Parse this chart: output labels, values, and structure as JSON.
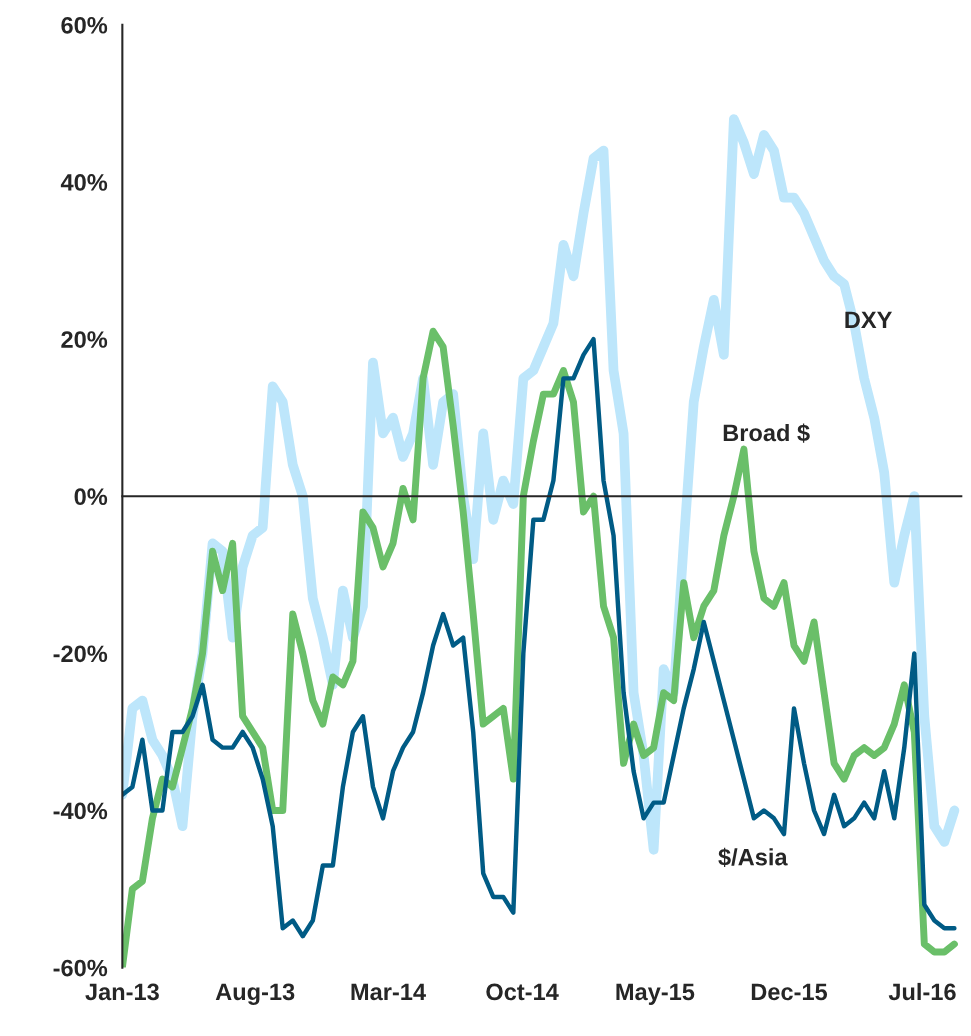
{
  "chart_data": {
    "type": "line",
    "x": [
      "2013-01-01",
      "2013-01-17",
      "2013-02-02",
      "2013-02-18",
      "2013-03-06",
      "2013-03-22",
      "2013-04-07",
      "2013-04-23",
      "2013-05-09",
      "2013-05-25",
      "2013-06-10",
      "2013-06-26",
      "2013-07-12",
      "2013-07-28",
      "2013-08-13",
      "2013-08-29",
      "2013-09-14",
      "2013-09-30",
      "2013-10-16",
      "2013-11-01",
      "2013-11-17",
      "2013-12-03",
      "2013-12-19",
      "2014-01-04",
      "2014-01-20",
      "2014-02-05",
      "2014-02-21",
      "2014-03-09",
      "2014-03-25",
      "2014-04-10",
      "2014-04-26",
      "2014-05-12",
      "2014-05-28",
      "2014-06-13",
      "2014-06-29",
      "2014-07-15",
      "2014-07-31",
      "2014-08-16",
      "2014-09-01",
      "2014-09-17",
      "2014-10-03",
      "2014-10-19",
      "2014-11-04",
      "2014-11-20",
      "2014-12-06",
      "2014-12-22",
      "2015-01-07",
      "2015-01-23",
      "2015-02-08",
      "2015-02-24",
      "2015-03-12",
      "2015-03-28",
      "2015-04-13",
      "2015-04-29",
      "2015-05-15",
      "2015-05-31",
      "2015-06-16",
      "2015-07-02",
      "2015-07-18",
      "2015-08-03",
      "2015-08-19",
      "2015-09-04",
      "2015-09-20",
      "2015-10-06",
      "2015-10-22",
      "2015-11-07",
      "2015-11-23",
      "2015-12-09",
      "2015-12-25",
      "2016-01-10",
      "2016-01-26",
      "2016-02-11",
      "2016-02-27",
      "2016-03-14",
      "2016-03-30",
      "2016-04-15",
      "2016-05-01",
      "2016-05-17",
      "2016-06-02",
      "2016-06-18",
      "2016-07-04",
      "2016-07-20",
      "2016-08-05",
      "2016-08-21"
    ],
    "series": [
      {
        "name": "DXY",
        "color": "#bde6fb",
        "values": [
          -38,
          -27,
          -26,
          -31,
          -33,
          -36,
          -42,
          -28,
          -20,
          -6,
          -7,
          -18,
          -9,
          -5,
          -4,
          14,
          12,
          4,
          0,
          -13,
          -18,
          -24,
          -12,
          -18,
          -14,
          17,
          8,
          10,
          5,
          8,
          15,
          4,
          12,
          13,
          0,
          -8,
          8,
          -3,
          2,
          -1,
          15,
          16,
          19,
          22,
          32,
          28,
          36,
          43,
          44,
          16,
          8,
          -25,
          -33,
          -45,
          -22,
          -25,
          -6,
          12,
          19,
          25,
          18,
          48,
          45,
          41,
          46,
          44,
          38,
          38,
          36,
          33,
          30,
          28,
          27,
          22,
          15,
          10,
          3,
          -11,
          -5,
          0,
          -28,
          -42,
          -44,
          -40
        ]
      },
      {
        "name": "Broad $",
        "color": "#6abf69",
        "values": [
          -60,
          -50,
          -49,
          -41,
          -36,
          -37,
          -32,
          -27,
          -20,
          -7,
          -12,
          -6,
          -28,
          -30,
          -32,
          -40,
          -40,
          -15,
          -20,
          -26,
          -29,
          -23,
          -24,
          -21,
          -2,
          -4,
          -9,
          -6,
          1,
          -3,
          15,
          21,
          19,
          9,
          -2,
          -15,
          -29,
          -28,
          -27,
          -36,
          0,
          7,
          13,
          13,
          16,
          12,
          -2,
          0,
          -14,
          -18,
          -34,
          -29,
          -33,
          -32,
          -25,
          -26,
          -11,
          -18,
          -14,
          -12,
          -5,
          0,
          6,
          -7,
          -13,
          -14,
          -11,
          -19,
          -21,
          -16,
          -25,
          -34,
          -36,
          -33,
          -32,
          -33,
          -32,
          -29,
          -24,
          -30,
          -57,
          -58,
          -58,
          -57
        ]
      },
      {
        "name": "$/Asia",
        "color": "#005b85",
        "values": [
          -38,
          -37,
          -31,
          -40,
          -40,
          -30,
          -30,
          -28,
          -24,
          -31,
          -32,
          -32,
          -30,
          -32,
          -36,
          -42,
          -55,
          -54,
          -56,
          -54,
          -47,
          -47,
          -37,
          -30,
          -28,
          -37,
          -41,
          -35,
          -32,
          -30,
          -25,
          -19,
          -15,
          -19,
          -18,
          -30,
          -48,
          -51,
          -51,
          -53,
          -20,
          -3,
          -3,
          2,
          15,
          15,
          18,
          20,
          2,
          -5,
          -25,
          -35,
          -41,
          -39,
          -39,
          -33,
          -27,
          -22,
          -16,
          -21,
          -26,
          -31,
          -36,
          -41,
          -40,
          -41,
          -43,
          -27,
          -34,
          -40,
          -43,
          -38,
          -42,
          -41,
          -39,
          -41,
          -35,
          -41,
          -32,
          -20,
          -52,
          -54,
          -55,
          -55
        ]
      }
    ],
    "xlim": [
      "2013-01-01",
      "2016-09-01"
    ],
    "xticks": [
      {
        "value": "2013-01-01",
        "label": "Jan-13"
      },
      {
        "value": "2013-08-01",
        "label": "Aug-13"
      },
      {
        "value": "2014-03-01",
        "label": "Mar-14"
      },
      {
        "value": "2014-10-01",
        "label": "Oct-14"
      },
      {
        "value": "2015-05-01",
        "label": "May-15"
      },
      {
        "value": "2015-12-01",
        "label": "Dec-15"
      },
      {
        "value": "2016-07-01",
        "label": "Jul-16"
      }
    ],
    "ylim": [
      -60,
      60
    ],
    "yticks": [
      {
        "value": -60,
        "label": "-60%"
      },
      {
        "value": -40,
        "label": "-40%"
      },
      {
        "value": -20,
        "label": "-20%"
      },
      {
        "value": 0,
        "label": "0%"
      },
      {
        "value": 20,
        "label": "20%"
      },
      {
        "value": 40,
        "label": "40%"
      },
      {
        "value": 60,
        "label": "60%"
      }
    ]
  }
}
